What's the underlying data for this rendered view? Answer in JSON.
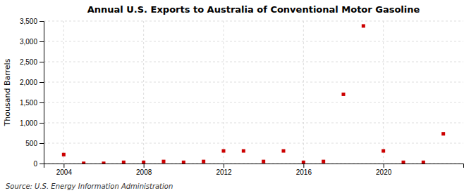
{
  "chart_data": {
    "type": "scatter",
    "title": "Annual U.S. Exports to Australia of Conventional Motor Gasoline",
    "y_label": "Thousand Barrels",
    "annotations": [
      "Source: U.S. Energy Information Administration"
    ],
    "x": [
      2004,
      2005,
      2006,
      2007,
      2008,
      2009,
      2010,
      2011,
      2012,
      2013,
      2014,
      2015,
      2016,
      2017,
      2018,
      2019,
      2020,
      2021,
      2022,
      2023
    ],
    "values": [
      220,
      5,
      5,
      30,
      30,
      50,
      30,
      50,
      310,
      310,
      50,
      310,
      30,
      50,
      1700,
      3380,
      310,
      30,
      30,
      730
    ],
    "color": "#cc0000",
    "marker": "square",
    "xlim": [
      2003.0,
      2024.0
    ],
    "xticks": [
      2004,
      2008,
      2012,
      2016,
      2020
    ],
    "ylim": [
      0,
      3500
    ],
    "yticks": [
      0,
      500,
      {
        "value": 1000,
        "label": "1,000"
      },
      {
        "value": 1500,
        "label": "1,500"
      },
      {
        "value": 2000,
        "label": "2,000"
      },
      {
        "value": 2500,
        "label": "2,500"
      },
      {
        "value": 3000,
        "label": "3,000"
      },
      {
        "value": 3500,
        "label": "3,500"
      }
    ],
    "grid": true
  }
}
